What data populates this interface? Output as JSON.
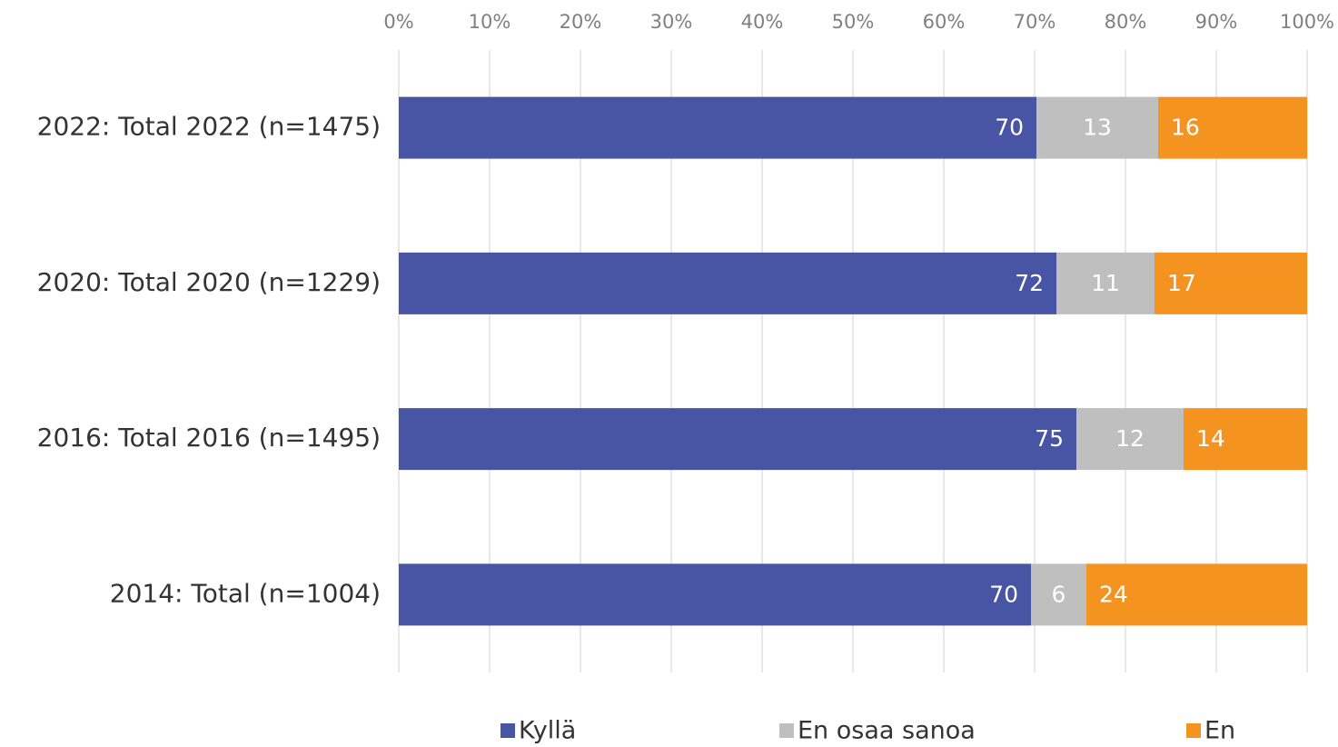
{
  "chart_data": {
    "type": "stacked_bar_horizontal",
    "categories": [
      "2022: Total 2022 (n=1475)",
      "2020: Total 2020 (n=1229)",
      "2016: Total 2016 (n=1495)",
      "2014: Total (n=1004)"
    ],
    "series": [
      {
        "name": "Kyllä",
        "color": "#4854a4",
        "values": [
          70.2,
          72.4,
          74.6,
          69.6
        ],
        "value_labels": [
          "70",
          "72",
          "75",
          "70"
        ]
      },
      {
        "name": "En osaa sanoa",
        "color": "#bfbfbf",
        "values": [
          13.4,
          10.8,
          11.8,
          6.1
        ],
        "value_labels": [
          "13",
          "11",
          "12",
          "6"
        ]
      },
      {
        "name": "En",
        "color": "#f59320",
        "values": [
          16.4,
          16.8,
          13.6,
          24.3
        ],
        "value_labels": [
          "16",
          "17",
          "14",
          "24"
        ]
      }
    ],
    "xlim": [
      0,
      100
    ],
    "xticks": [
      {
        "value": 0,
        "label": "0%"
      },
      {
        "value": 10,
        "label": "10%"
      },
      {
        "value": 20,
        "label": "20%"
      },
      {
        "value": 30,
        "label": "30%"
      },
      {
        "value": 40,
        "label": "40%"
      },
      {
        "value": 50,
        "label": "50%"
      },
      {
        "value": 60,
        "label": "60%"
      },
      {
        "value": 70,
        "label": "70%"
      },
      {
        "value": 80,
        "label": "80%"
      },
      {
        "value": 90,
        "label": "90%"
      },
      {
        "value": 100,
        "label": "100%"
      }
    ],
    "grid": true,
    "legend": "bottom"
  }
}
